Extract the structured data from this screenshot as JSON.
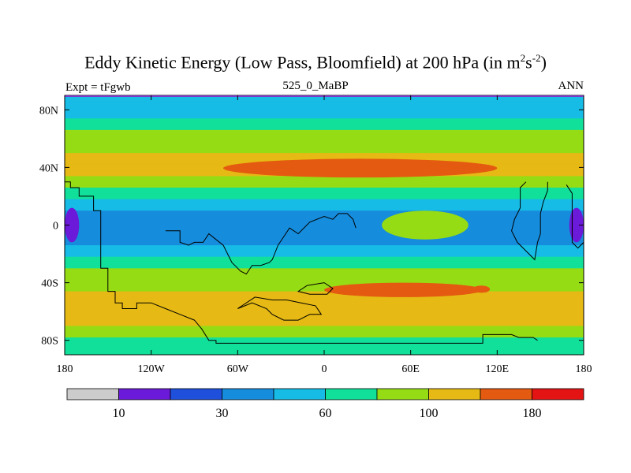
{
  "title_main": "Eddy Kinetic Energy (Low Pass, Bloomfield) at 200 hPa (in m",
  "title_sup1": "2",
  "title_s": "s",
  "title_sup2": "-2",
  "title_end": ")",
  "left_string": "Expt = tFgwb",
  "center_string": "525_0_MaBP",
  "right_string": "ANN",
  "chart_data": {
    "type": "heatmap",
    "title": "Eddy Kinetic Energy (Low Pass, Bloomfield) at 200 hPa (in m2s-2)",
    "variable_units": "m2 s-2",
    "xlim": [
      -180,
      180
    ],
    "ylim": [
      -90,
      90
    ],
    "x_ticks": [
      {
        "value": -180,
        "label": "180"
      },
      {
        "value": -120,
        "label": "120W"
      },
      {
        "value": -60,
        "label": "60W"
      },
      {
        "value": 0,
        "label": "0"
      },
      {
        "value": 60,
        "label": "60E"
      },
      {
        "value": 120,
        "label": "120E"
      },
      {
        "value": 180,
        "label": "180"
      }
    ],
    "y_ticks": [
      {
        "value": 80,
        "label": "80N"
      },
      {
        "value": 40,
        "label": "40N"
      },
      {
        "value": 0,
        "label": "0"
      },
      {
        "value": -40,
        "label": "40S"
      },
      {
        "value": -80,
        "label": "80S"
      }
    ],
    "colorbar": {
      "colors": [
        "#cccccc",
        "#6a1ad8",
        "#1e50dc",
        "#168cdc",
        "#16bce6",
        "#10e09a",
        "#96dc14",
        "#e6b914",
        "#e45a10",
        "#e41414"
      ],
      "labels": [
        {
          "boundary": 1,
          "label": "10"
        },
        {
          "boundary": 3,
          "label": "30"
        },
        {
          "boundary": 5,
          "label": "60"
        },
        {
          "boundary": 7,
          "label": "100"
        },
        {
          "boundary": 9,
          "label": "180"
        }
      ]
    },
    "zonal_profile": [
      {
        "lat": 90,
        "level": 4
      },
      {
        "lat": 82,
        "level": 4
      },
      {
        "lat": 74,
        "level": 5
      },
      {
        "lat": 66,
        "level": 6
      },
      {
        "lat": 58,
        "level": 6
      },
      {
        "lat": 50,
        "level": 7
      },
      {
        "lat": 42,
        "level": 7
      },
      {
        "lat": 34,
        "level": 6
      },
      {
        "lat": 26,
        "level": 5
      },
      {
        "lat": 18,
        "level": 4
      },
      {
        "lat": 10,
        "level": 3
      },
      {
        "lat": 2,
        "level": 3
      },
      {
        "lat": -6,
        "level": 3
      },
      {
        "lat": -14,
        "level": 4
      },
      {
        "lat": -22,
        "level": 5
      },
      {
        "lat": -30,
        "level": 6
      },
      {
        "lat": -38,
        "level": 6
      },
      {
        "lat": -46,
        "level": 7
      },
      {
        "lat": -54,
        "level": 7
      },
      {
        "lat": -62,
        "level": 7
      },
      {
        "lat": -70,
        "level": 6
      },
      {
        "lat": -78,
        "level": 5
      },
      {
        "lat": -86,
        "level": 5
      }
    ],
    "features": [
      {
        "name": "north-jet-max",
        "lon_min": -70,
        "lon_max": 120,
        "lat_min": 33,
        "lat_max": 46,
        "level": 8
      },
      {
        "name": "south-jet-max",
        "lon_min": 0,
        "lon_max": 110,
        "lat_min": -50,
        "lat_max": -40,
        "level": 8
      },
      {
        "name": "south-jet-small-max",
        "lon_min": 103,
        "lon_max": 115,
        "lat_min": -47,
        "lat_max": -42,
        "level": 8
      },
      {
        "name": "tropical-pacific-min-west",
        "lon_min": -180,
        "lon_max": -170,
        "lat_min": -12,
        "lat_max": 12,
        "level": 1
      },
      {
        "name": "tropical-pacific-min-east",
        "lon_min": 170,
        "lon_max": 180,
        "lat_min": -12,
        "lat_max": 12,
        "level": 1
      },
      {
        "name": "indian-ocean-bump",
        "lon_min": 40,
        "lon_max": 100,
        "lat_min": -10,
        "lat_max": 10,
        "level": 6
      }
    ]
  }
}
